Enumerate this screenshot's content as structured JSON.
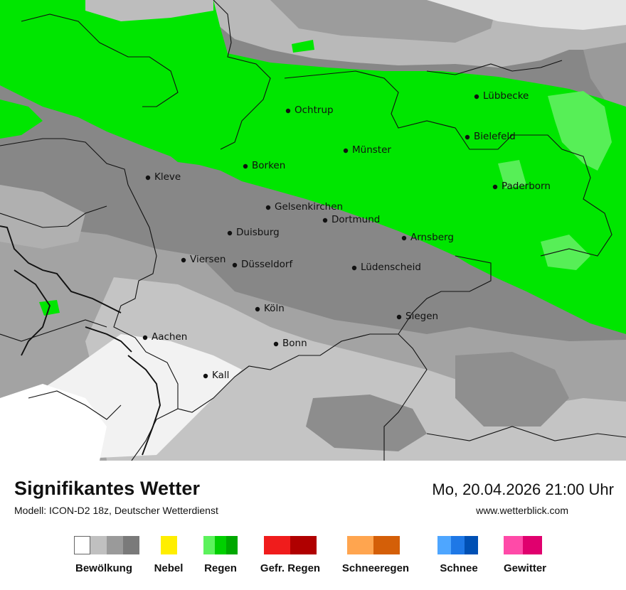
{
  "header": {
    "title": "Signifikantes Wetter",
    "model": "Modell: ICON-D2 18z, Deutscher Wetterdienst",
    "datetime": "Mo, 20.04.2026 21:00 Uhr",
    "website": "www.wetterblick.com"
  },
  "map": {
    "cities": [
      {
        "name": "Lübbecke"
      },
      {
        "name": "Ochtrup"
      },
      {
        "name": "Bielefeld"
      },
      {
        "name": "Münster"
      },
      {
        "name": "Borken"
      },
      {
        "name": "Kleve"
      },
      {
        "name": "Paderborn"
      },
      {
        "name": "Gelsenkirchen"
      },
      {
        "name": "Dortmund"
      },
      {
        "name": "Duisburg"
      },
      {
        "name": "Arnsberg"
      },
      {
        "name": "Viersen"
      },
      {
        "name": "Düsseldorf"
      },
      {
        "name": "Lüdenscheid"
      },
      {
        "name": "Köln"
      },
      {
        "name": "Siegen"
      },
      {
        "name": "Aachen"
      },
      {
        "name": "Bonn"
      },
      {
        "name": "Kall"
      }
    ],
    "colors": {
      "rain": "#00e600",
      "cloud_dark": "#7d7d7d",
      "cloud_mid": "#9a9a9a",
      "cloud_light": "#bfbfbf",
      "clear": "#ffffff"
    }
  },
  "legend": [
    {
      "label": "Bewölkung",
      "colors": [
        "#ffffff",
        "#c0c0c0",
        "#9a9a9a",
        "#7a7a7a"
      ]
    },
    {
      "label": "Nebel",
      "colors": [
        "#ffee00"
      ]
    },
    {
      "label": "Regen",
      "colors": [
        "#5cf25c",
        "#00d000",
        "#00a800"
      ]
    },
    {
      "label": "Gefr. Regen",
      "colors": [
        "#f01c1c",
        "#b00000"
      ]
    },
    {
      "label": "Schneeregen",
      "colors": [
        "#ffa54f",
        "#d45f08"
      ]
    },
    {
      "label": "Schnee",
      "colors": [
        "#4ea6ff",
        "#1e78e6",
        "#0050b4"
      ]
    },
    {
      "label": "Gewitter",
      "colors": [
        "#ff4aa8",
        "#e0006e"
      ]
    }
  ]
}
